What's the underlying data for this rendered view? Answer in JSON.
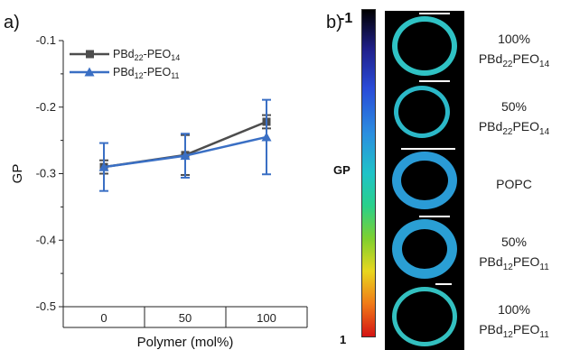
{
  "panel_a_label": "a)",
  "panel_b_label": "b)",
  "chart_data": {
    "type": "line",
    "xlabel": "Polymer (mol%)",
    "ylabel": "GP",
    "categories": [
      "0",
      "50",
      "100"
    ],
    "ylim": [
      -0.5,
      -0.1
    ],
    "yticks": [
      "-0.1",
      "-0.2",
      "-0.3",
      "-0.4",
      "-0.5"
    ],
    "ytick_values": [
      -0.1,
      -0.2,
      -0.3,
      -0.4,
      -0.5
    ],
    "legend_position": "top-left",
    "series": [
      {
        "name": "PBd22-PEO14",
        "name_parts": {
          "a": "PBd",
          "a_sub": "22",
          "b": "-PEO",
          "b_sub": "14"
        },
        "marker": "square",
        "color": "#4d4d4d",
        "values": [
          -0.29,
          -0.272,
          -0.222
        ],
        "errors": [
          0.01,
          0.03,
          0.01
        ]
      },
      {
        "name": "PBd12-PEO11",
        "name_parts": {
          "a": "PBd",
          "a_sub": "12",
          "b": "-PEO",
          "b_sub": "11"
        },
        "marker": "triangle",
        "color": "#3a6fc4",
        "values": [
          -0.29,
          -0.273,
          -0.245
        ],
        "errors": [
          0.036,
          0.033,
          0.056
        ]
      }
    ]
  },
  "colorbar": {
    "title": "GP",
    "top_label": "-1",
    "bottom_label": "1"
  },
  "samples": [
    {
      "percent": "100%",
      "a": "PBd",
      "a_sub": "22",
      "b": "PEO",
      "b_sub": "14",
      "ring_color": "#2fc2c4"
    },
    {
      "percent": "50%",
      "a": "PBd",
      "a_sub": "22",
      "b": "PEO",
      "b_sub": "14",
      "ring_color": "#2bb8c8"
    },
    {
      "percent": "POPC",
      "a": "",
      "a_sub": "",
      "b": "",
      "b_sub": "",
      "ring_color": "#2a9bd6"
    },
    {
      "percent": "50%",
      "a": "PBd",
      "a_sub": "12",
      "b": "PEO",
      "b_sub": "11",
      "ring_color": "#2a9fd4"
    },
    {
      "percent": "100%",
      "a": "PBd",
      "a_sub": "12",
      "b": "PEO",
      "b_sub": "11",
      "ring_color": "#33c0c0"
    }
  ]
}
